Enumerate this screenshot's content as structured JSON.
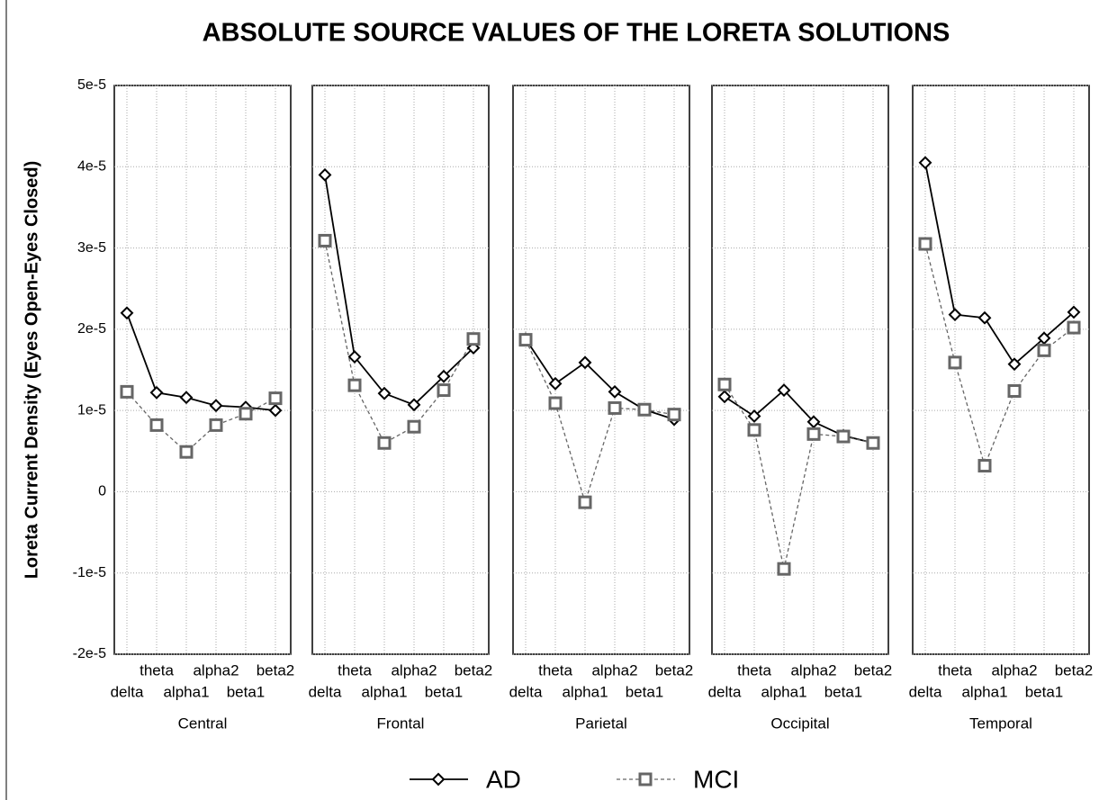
{
  "chart_data": {
    "type": "line",
    "title": "ABSOLUTE SOURCE VALUES OF THE LORETA SOLUTIONS",
    "y_label": "Loreta Current Density (Eyes Open-Eyes Closed)",
    "categories": [
      "delta",
      "theta",
      "alpha1",
      "alpha2",
      "beta1",
      "beta2"
    ],
    "ylim": [
      -2e-05,
      5e-05
    ],
    "yticks": [
      {
        "value": -2e-05,
        "label": "-2e-5"
      },
      {
        "value": -1e-05,
        "label": "-1e-5"
      },
      0,
      {
        "value": 1e-05,
        "label": "1e-5"
      },
      {
        "value": 2e-05,
        "label": "2e-5"
      },
      {
        "value": 3e-05,
        "label": "3e-5"
      },
      {
        "value": 4e-05,
        "label": "4e-5"
      },
      {
        "value": 5e-05,
        "label": "5e-5"
      }
    ],
    "grid": true,
    "series": [
      {
        "name": "AD",
        "color": "#000000",
        "marker": "diamond",
        "dash": "solid"
      },
      {
        "name": "MCI",
        "color": "#666666",
        "marker": "square",
        "dash": "dashed"
      }
    ],
    "panels": [
      {
        "name": "Central",
        "series": [
          {
            "values": [
              2.2e-05,
              1.22e-05,
              1.16e-05,
              1.06e-05,
              1.04e-05,
              1e-05
            ]
          },
          {
            "values": [
              1.23e-05,
              8.2e-06,
              4.9e-06,
              8.2e-06,
              9.6e-06,
              1.15e-05
            ]
          }
        ]
      },
      {
        "name": "Frontal",
        "series": [
          {
            "values": [
              3.9e-05,
              1.66e-05,
              1.21e-05,
              1.07e-05,
              1.42e-05,
              1.77e-05
            ]
          },
          {
            "values": [
              3.09e-05,
              1.31e-05,
              6e-06,
              8e-06,
              1.25e-05,
              1.88e-05
            ]
          }
        ]
      },
      {
        "name": "Parietal",
        "series": [
          {
            "values": [
              1.88e-05,
              1.33e-05,
              1.59e-05,
              1.23e-05,
              1.01e-05,
              8.9e-06
            ]
          },
          {
            "values": [
              1.87e-05,
              1.09e-05,
              -1.3e-06,
              1.03e-05,
              1.01e-05,
              9.5e-06
            ]
          }
        ]
      },
      {
        "name": "Occipital",
        "series": [
          {
            "values": [
              1.17e-05,
              9.3e-06,
              1.25e-05,
              8.6e-06,
              6.9e-06,
              6e-06
            ]
          },
          {
            "values": [
              1.32e-05,
              7.6e-06,
              -9.5e-06,
              7.1e-06,
              6.8e-06,
              6e-06
            ]
          }
        ]
      },
      {
        "name": "Temporal",
        "series": [
          {
            "values": [
              4.05e-05,
              2.18e-05,
              2.14e-05,
              1.57e-05,
              1.89e-05,
              2.21e-05
            ]
          },
          {
            "values": [
              3.05e-05,
              1.59e-05,
              3.2e-06,
              1.24e-05,
              1.74e-05,
              2.02e-05
            ]
          }
        ]
      }
    ]
  }
}
